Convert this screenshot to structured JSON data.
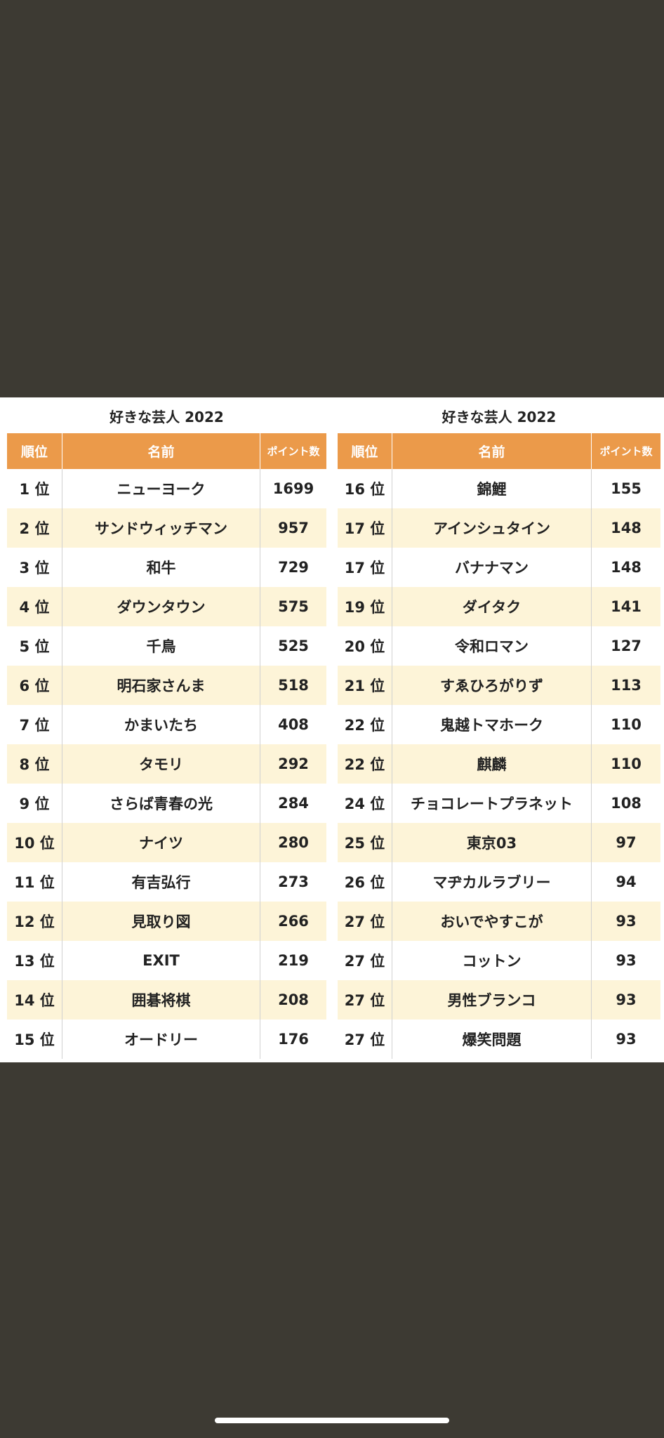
{
  "tables": [
    {
      "title": "好きな芸人 2022",
      "headers": [
        "順位",
        "名前",
        "ポイント数"
      ],
      "rows": [
        [
          "1 位",
          "ニューヨーク",
          1699
        ],
        [
          "2 位",
          "サンドウィッチマン",
          957
        ],
        [
          "3 位",
          "和牛",
          729
        ],
        [
          "4 位",
          "ダウンタウン",
          575
        ],
        [
          "5 位",
          "千鳥",
          525
        ],
        [
          "6 位",
          "明石家さんま",
          518
        ],
        [
          "7 位",
          "かまいたち",
          408
        ],
        [
          "8 位",
          "タモリ",
          292
        ],
        [
          "9 位",
          "さらば青春の光",
          284
        ],
        [
          "10 位",
          "ナイツ",
          280
        ],
        [
          "11 位",
          "有吉弘行",
          273
        ],
        [
          "12 位",
          "見取り図",
          266
        ],
        [
          "13 位",
          "EXIT",
          219
        ],
        [
          "14 位",
          "囲碁将棋",
          208
        ],
        [
          "15 位",
          "オードリー",
          176
        ]
      ]
    },
    {
      "title": "好きな芸人 2022",
      "headers": [
        "順位",
        "名前",
        "ポイント数"
      ],
      "rows": [
        [
          "16 位",
          "錦鯉",
          155
        ],
        [
          "17 位",
          "アインシュタイン",
          148
        ],
        [
          "17 位",
          "バナナマン",
          148
        ],
        [
          "19 位",
          "ダイタク",
          141
        ],
        [
          "20 位",
          "令和ロマン",
          127
        ],
        [
          "21 位",
          "すゑひろがりず",
          113
        ],
        [
          "22 位",
          "鬼越トマホーク",
          110
        ],
        [
          "22 位",
          "麒麟",
          110
        ],
        [
          "24 位",
          "チョコレートプラネット",
          108
        ],
        [
          "25 位",
          "東京03",
          97
        ],
        [
          "26 位",
          "マヂカルラブリー",
          94
        ],
        [
          "27 位",
          "おいでやすこが",
          93
        ],
        [
          "27 位",
          "コットン",
          93
        ],
        [
          "27 位",
          "男性ブランコ",
          93
        ],
        [
          "27 位",
          "爆笑問題",
          93
        ]
      ]
    }
  ]
}
